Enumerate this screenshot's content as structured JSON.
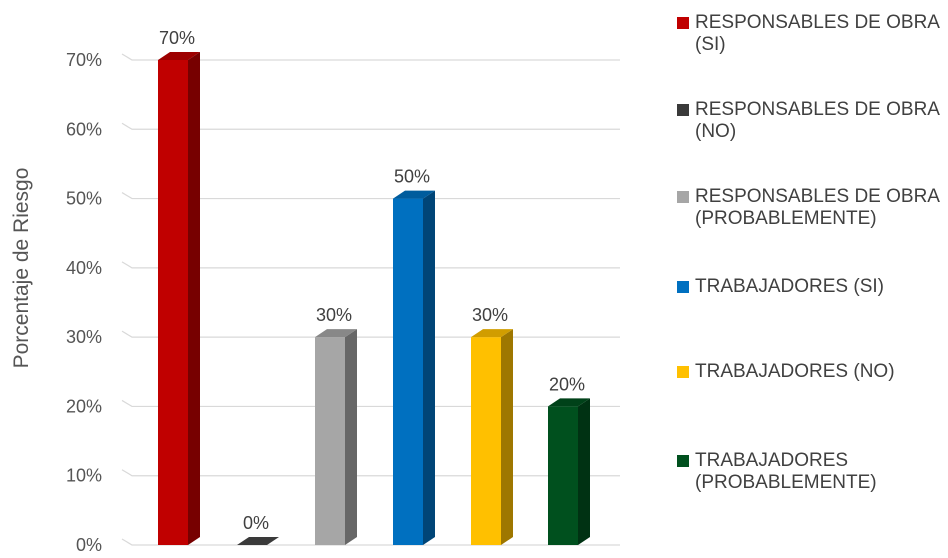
{
  "chart_data": {
    "type": "bar",
    "ylabel": "Porcentaje de Riesgo",
    "ylim": [
      0,
      70
    ],
    "yticks": [
      "0%",
      "10%",
      "20%",
      "30%",
      "40%",
      "50%",
      "60%",
      "70%"
    ],
    "grid": true,
    "legend_position": "right",
    "categories": [
      "RESPONSABLES DE OBRA (SI)",
      "RESPONSABLES DE OBRA (NO)",
      "RESPONSABLES DE OBRA (PROBABLEMENTE)",
      "TRABAJADORES (SI)",
      "TRABAJADORES (NO)",
      "TRABAJADORES (PROBABLEMENTE)"
    ],
    "values": [
      70,
      0,
      30,
      50,
      30,
      20
    ],
    "data_labels": [
      "70%",
      "0%",
      "30%",
      "50%",
      "30%",
      "20%"
    ],
    "colors": [
      "#c00000",
      "#3a3a3a",
      "#a6a6a6",
      "#0070c0",
      "#ffc000",
      "#00501e"
    ]
  },
  "legend": [
    {
      "label": "RESPONSABLES DE OBRA (SI)",
      "color": "#c00000"
    },
    {
      "label": "RESPONSABLES DE OBRA (NO)",
      "color": "#3a3a3a"
    },
    {
      "label": "RESPONSABLES DE OBRA (PROBABLEMENTE)",
      "color": "#a6a6a6"
    },
    {
      "label": "TRABAJADORES (SI)",
      "color": "#0070c0"
    },
    {
      "label": "TRABAJADORES (NO)",
      "color": "#ffc000"
    },
    {
      "label": "TRABAJADORES (PROBABLEMENTE)",
      "color": "#00501e"
    }
  ]
}
